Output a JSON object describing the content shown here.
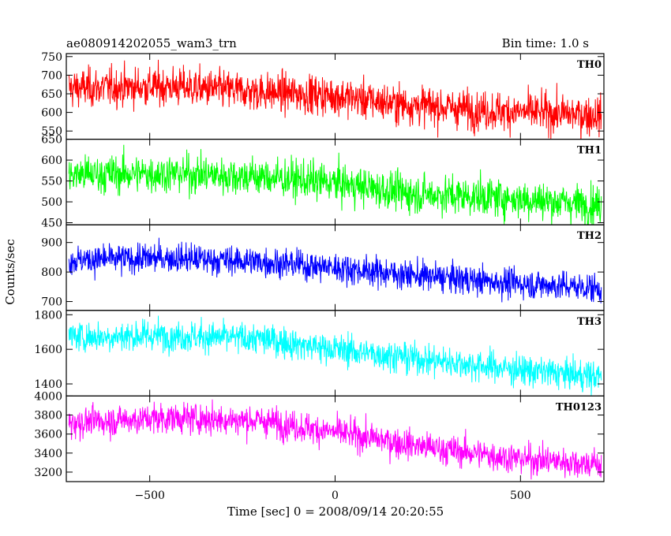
{
  "chart_data": {
    "type": "line",
    "title": "ae080914202055_wam3_trn",
    "subtitle": "Bin time: 1.0 s",
    "xlabel": "Time [sec] 0 = 2008/09/14 20:20:55",
    "ylabel": "Counts/sec",
    "xlim": [
      -725,
      725
    ],
    "xticks": [
      -500,
      0,
      500
    ],
    "xtick_labels": [
      "−500",
      "0",
      "500"
    ],
    "grid": false,
    "bin_time_s": 1.0,
    "series": [
      {
        "name": "TH0",
        "color": "#ff0000",
        "ylim": [
          528,
          758
        ],
        "yticks": [
          550,
          600,
          650,
          700,
          750
        ],
        "trend": [
          [
            -720,
            665
          ],
          [
            -450,
            670
          ],
          [
            -200,
            655
          ],
          [
            0,
            645
          ],
          [
            150,
            625
          ],
          [
            400,
            605
          ],
          [
            720,
            592
          ]
        ],
        "noise_sd": 26
      },
      {
        "name": "TH1",
        "color": "#00ff00",
        "ylim": [
          445,
          650
        ],
        "yticks": [
          450,
          500,
          550,
          600,
          650
        ],
        "trend": [
          [
            -720,
            565
          ],
          [
            -450,
            568
          ],
          [
            -200,
            560
          ],
          [
            0,
            545
          ],
          [
            200,
            520
          ],
          [
            450,
            510
          ],
          [
            720,
            492
          ]
        ],
        "noise_sd": 23
      },
      {
        "name": "TH2",
        "color": "#0000ff",
        "ylim": [
          670,
          960
        ],
        "yticks": [
          700,
          800,
          900
        ],
        "trend": [
          [
            -720,
            840
          ],
          [
            -450,
            848
          ],
          [
            -200,
            835
          ],
          [
            0,
            815
          ],
          [
            200,
            790
          ],
          [
            450,
            765
          ],
          [
            720,
            745
          ]
        ],
        "noise_sd": 25
      },
      {
        "name": "TH3",
        "color": "#00ffff",
        "ylim": [
          1330,
          1825
        ],
        "yticks": [
          1400,
          1600,
          1800
        ],
        "trend": [
          [
            -720,
            1670
          ],
          [
            -450,
            1680
          ],
          [
            -200,
            1660
          ],
          [
            0,
            1600
          ],
          [
            250,
            1540
          ],
          [
            500,
            1480
          ],
          [
            720,
            1440
          ]
        ],
        "noise_sd": 45
      },
      {
        "name": "TH0123",
        "color": "#ff00ff",
        "ylim": [
          3100,
          4000
        ],
        "yticks": [
          3200,
          3400,
          3600,
          3800,
          4000
        ],
        "trend": [
          [
            -720,
            3720
          ],
          [
            -450,
            3770
          ],
          [
            -200,
            3740
          ],
          [
            0,
            3620
          ],
          [
            250,
            3460
          ],
          [
            500,
            3340
          ],
          [
            720,
            3280
          ]
        ],
        "noise_sd": 80
      }
    ]
  }
}
